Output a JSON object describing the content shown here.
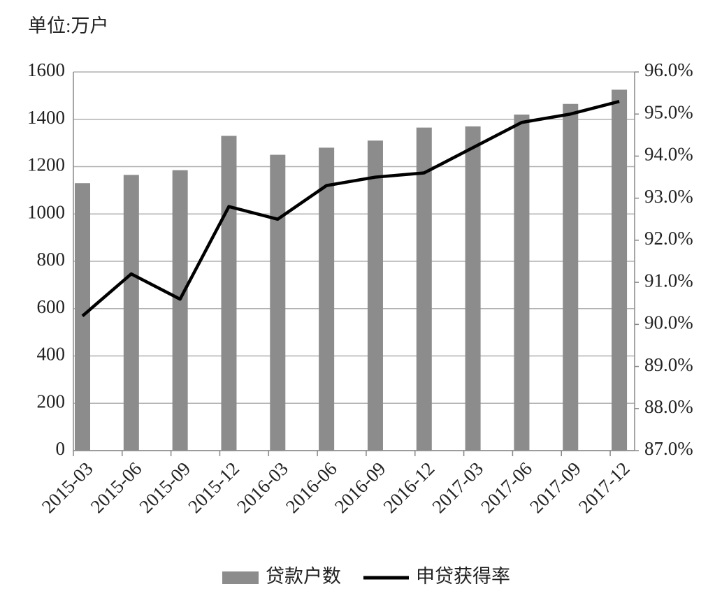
{
  "chart_data": {
    "type": "bar_line",
    "unit_label": "单位:万户",
    "categories": [
      "2015-03",
      "2015-06",
      "2015-09",
      "2015-12",
      "2016-03",
      "2016-06",
      "2016-09",
      "2016-12",
      "2017-03",
      "2017-06",
      "2017-09",
      "2017-12"
    ],
    "series": [
      {
        "name": "贷款户数",
        "type": "bar",
        "color": "#8c8c8c",
        "values": [
          1130,
          1165,
          1185,
          1330,
          1250,
          1280,
          1310,
          1365,
          1370,
          1420,
          1465,
          1525
        ]
      },
      {
        "name": "申贷获得率",
        "type": "line",
        "axis": "y2",
        "color": "#000000",
        "values": [
          90.2,
          91.2,
          90.6,
          92.8,
          92.5,
          93.3,
          93.5,
          93.6,
          94.2,
          94.8,
          95.0,
          95.3
        ]
      }
    ],
    "ylim": [
      0,
      1600
    ],
    "yticks": [
      0,
      200,
      400,
      600,
      800,
      1000,
      1200,
      1400,
      1600
    ],
    "y2lim": [
      87,
      96
    ],
    "y2ticks": [
      {
        "value": 87,
        "label": "87.0%"
      },
      {
        "value": 88,
        "label": "88.0%"
      },
      {
        "value": 89,
        "label": "89.0%"
      },
      {
        "value": 90,
        "label": "90.0%"
      },
      {
        "value": 91,
        "label": "91.0%"
      },
      {
        "value": 92,
        "label": "92.0%"
      },
      {
        "value": 93,
        "label": "93.0%"
      },
      {
        "value": 94,
        "label": "94.0%"
      },
      {
        "value": 95,
        "label": "95.0%"
      },
      {
        "value": 96,
        "label": "96.0%"
      }
    ],
    "grid": true,
    "legend": "bottom"
  }
}
